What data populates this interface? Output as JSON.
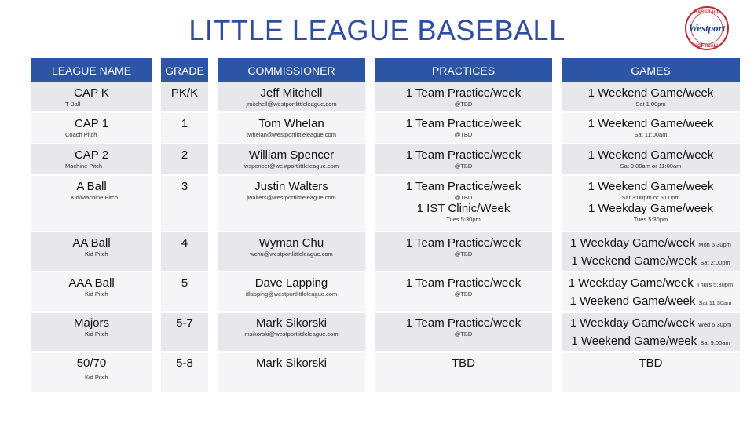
{
  "title": "LITTLE LEAGUE BASEBALL",
  "logo": {
    "text_top": "BASEBALL",
    "text_mid": "Westport",
    "text_bottom": "SOFTBALL"
  },
  "headers": [
    "LEAGUE NAME",
    "GRADE",
    "COMMISSIONER",
    "PRACTICES",
    "GAMES"
  ],
  "rows": [
    {
      "name": "CAP K",
      "name_sub": "T-Ball",
      "grade": "PK/K",
      "commissioner": "Jeff Mitchell",
      "email": "jmitchell@westportlittleleague.com",
      "practice": "1 Team Practice/week",
      "practice_sub": "@TBD",
      "game": "1 Weekend Game/week",
      "game_sub": "Sat 1:00pm"
    },
    {
      "name": "CAP 1",
      "name_sub": "Coach Pitch",
      "grade": "1",
      "commissioner": "Tom Whelan",
      "email": "twhelan@westportlittleleague.com",
      "practice": "1 Team Practice/week",
      "practice_sub": "@TBD",
      "game": "1 Weekend Game/week",
      "game_sub": "Sat 11:00am"
    },
    {
      "name": "CAP 2",
      "name_sub": "Machine Pitch",
      "grade": "2",
      "commissioner": "William Spencer",
      "email": "wspencer@westportlittleleague.com",
      "practice": "1 Team  Practice/week",
      "practice_sub": "@TBD",
      "game": "1 Weekend Game/week",
      "game_sub": "Sat 9:00am or 11:00am"
    },
    {
      "name": "A Ball",
      "name_sub": "Kid/Machine Pitch",
      "grade": "3",
      "commissioner": "Justin Walters",
      "email": "jwalters@westportlittleleague.com",
      "practice": "1 Team Practice/week",
      "practice_sub": "@TBD",
      "practice2": "1 IST Clinic/Week",
      "practice2_sub": "Tues 5:30pm",
      "game": "1 Weekend Game/week",
      "game_sub": "Sat 3:00pm or 5:00pm",
      "game2": "1 Weekday Game/week",
      "game2_sub": "Tues 5:30pm"
    },
    {
      "name": "AA Ball",
      "name_sub": "Kid Pitch",
      "grade": "4",
      "commissioner": "Wyman Chu",
      "email": "wchu@westportlittleleague.com",
      "practice": "1 Team Practice/week",
      "practice_sub": "@TBD",
      "game_line1": "1 Weekday Game/week",
      "game_line1_sub": "Mon 5:30pm",
      "game_line2": "1 Weekend Game/week",
      "game_line2_sub": "Sat 2:00pm"
    },
    {
      "name": "AAA Ball",
      "name_sub": "Kid Pitch",
      "grade": "5",
      "commissioner": "Dave Lapping",
      "email": "dlapping@westportlittleleague.com",
      "practice": "1 Team Practice/week",
      "practice_sub": "@TBD",
      "game_line1": "1 Weekday Game/week",
      "game_line1_sub": "Thurs 5:30pm",
      "game_line2": "1 Weekend Game/week",
      "game_line2_sub": "Sat 11:30am"
    },
    {
      "name": "Majors",
      "name_sub": "Kid Pitch",
      "grade": "5-7",
      "commissioner": "Mark Sikorski",
      "email": "msikorski@westportlittleleague.com",
      "practice": "1 Team Practice/week",
      "practice_sub": "@TBD",
      "game_line1": "1 Weekday Game/week",
      "game_line1_sub": "Wed 5:30pm",
      "game_line2": "1 Weekend Game/week",
      "game_line2_sub": "Sat 9:00am"
    },
    {
      "name": "50/70",
      "name_sub": "Kid Pitch",
      "grade": "5-8",
      "commissioner": "Mark Sikorski",
      "email": "",
      "practice": "TBD",
      "practice_sub": "",
      "game": "TBD",
      "game_sub": ""
    }
  ]
}
